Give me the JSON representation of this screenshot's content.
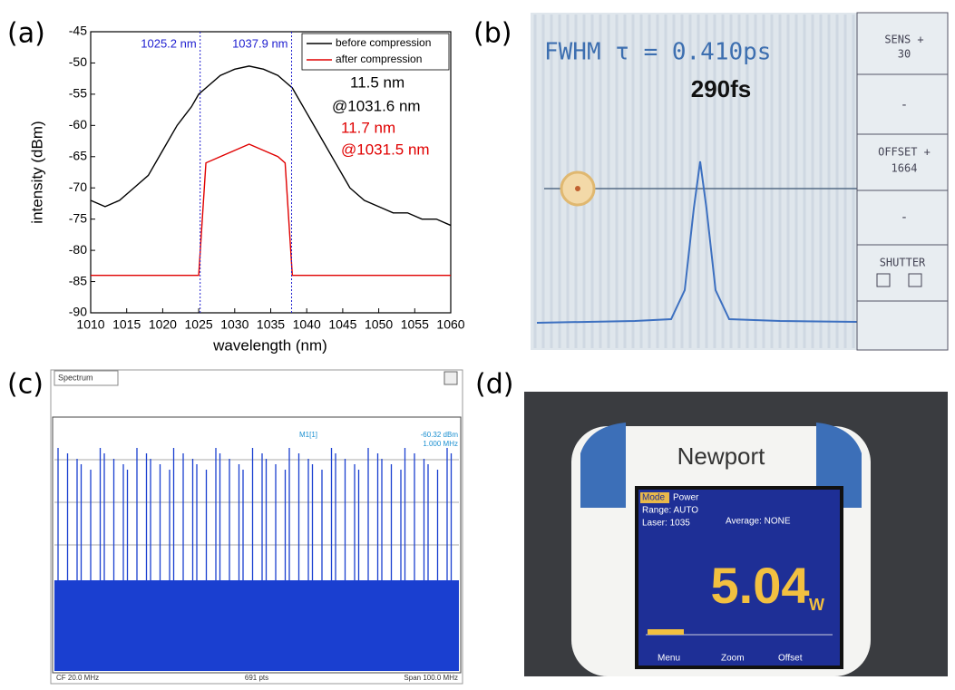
{
  "chart_data": {
    "type": "line",
    "label": "(a)",
    "xlabel": "wavelength (nm)",
    "ylabel": "intensity (dBm)",
    "xlim": [
      1010,
      1060
    ],
    "xticks": [
      1010,
      1015,
      1020,
      1025,
      1030,
      1035,
      1040,
      1045,
      1050,
      1055,
      1060
    ],
    "ylim": [
      -90,
      -45
    ],
    "yticks": [
      -90,
      -85,
      -80,
      -75,
      -70,
      -65,
      -60,
      -55,
      -50,
      -45
    ],
    "legend": "upper right",
    "x": [
      1010,
      1012,
      1014,
      1016,
      1018,
      1020,
      1022,
      1024,
      1025,
      1026,
      1028,
      1030,
      1032,
      1034,
      1036,
      1037,
      1038,
      1040,
      1042,
      1044,
      1046,
      1048,
      1050,
      1052,
      1054,
      1056,
      1058,
      1060
    ],
    "series": [
      {
        "name": "before compression",
        "color": "#000000",
        "values": [
          -72,
          -73,
          -72,
          -70,
          -68,
          -64,
          -60,
          -57,
          -55,
          -54,
          -52,
          -51,
          -50.5,
          -51,
          -52,
          -53,
          -54,
          -58,
          -62,
          -66,
          -70,
          -72,
          -73,
          -74,
          -74,
          -75,
          -75,
          -76
        ]
      },
      {
        "name": "after compression",
        "color": "#e00000",
        "values": [
          -84,
          -84,
          -84,
          -84,
          -84,
          -84,
          -84,
          -84,
          -84,
          -66,
          -65,
          -64,
          -63,
          -64,
          -65,
          -66,
          -84,
          -84,
          -84,
          -84,
          -84,
          -84,
          -84,
          -84,
          -84,
          -84,
          -84,
          -84
        ]
      }
    ],
    "markers": [
      {
        "text": "1025.2 nm",
        "x": 1025.2,
        "color": "#2020d0"
      },
      {
        "text": "1037.9 nm",
        "x": 1037.9,
        "color": "#2020d0"
      }
    ],
    "annotations": [
      {
        "text": "11.5 nm",
        "color": "#000000"
      },
      {
        "text": "@1031.6 nm",
        "color": "#000000"
      },
      {
        "text": "11.7 nm",
        "color": "#e00000"
      },
      {
        "text": "@1031.5 nm",
        "color": "#e00000"
      }
    ]
  },
  "panel_b": {
    "label": "(b)",
    "readout": "FWHM τ = 0.410ps",
    "result": "290fs",
    "buttons": [
      "SENS +",
      "30",
      "-",
      "OFFSET +",
      "1664",
      "-",
      "SHUTTER"
    ]
  },
  "panel_c": {
    "label": "(c)",
    "tab": "Spectrum",
    "marker": "M1[1]",
    "marker_level": "-60.32 dBm",
    "marker_freq": "1.000 MHz",
    "center": "CF 20.0 MHz",
    "points": "691 pts",
    "span": "Span 100.0 MHz"
  },
  "panel_d": {
    "label": "(d)",
    "brand": "Newport",
    "mode_key": "Mode",
    "mode": "Power",
    "range": "Range: AUTO",
    "average": "Average: NONE",
    "laser": "Laser: 1035",
    "reading": "5.04",
    "unit": "W",
    "menu": [
      "Menu",
      "Zoom",
      "Offset"
    ]
  }
}
